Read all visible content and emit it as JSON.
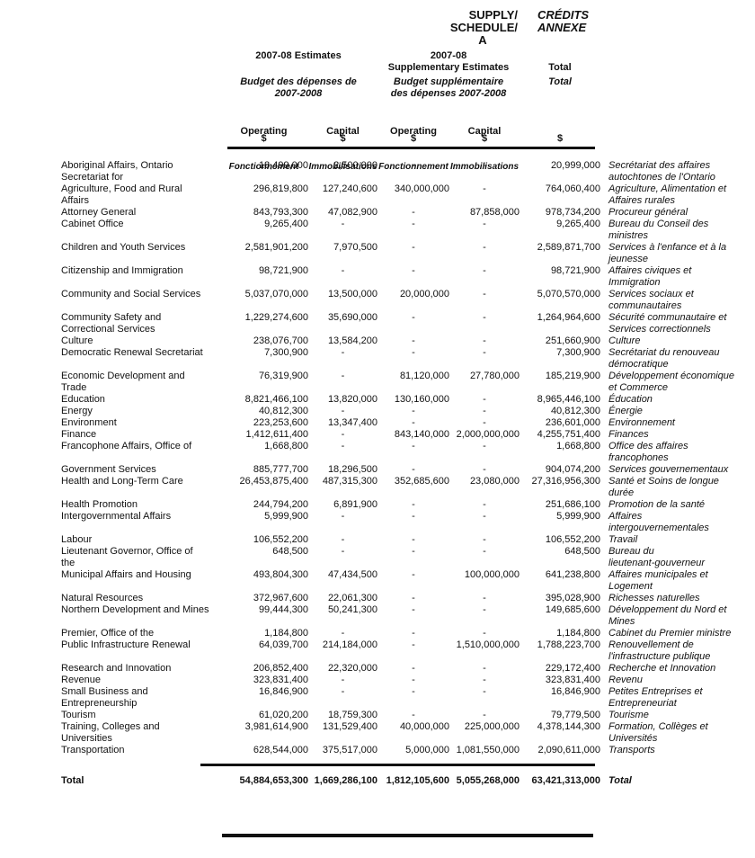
{
  "title": {
    "en_lines": [
      "SUPPLY/",
      "SCHEDULE/",
      "A"
    ],
    "fr_lines": [
      "CRÉDITS",
      "ANNEXE"
    ]
  },
  "columns": {
    "group1": {
      "en": "2007-08 Estimates",
      "fr": "Budget des dépenses de\n2007-2008"
    },
    "group2": {
      "en": "2007-08\nSupplementary Estimates",
      "fr": "Budget supplémentaire\ndes dépenses 2007-2008"
    },
    "total": {
      "en": "Total",
      "fr": "Total"
    },
    "operating": {
      "en": "Operating",
      "fr": "Fonctionnement"
    },
    "capital": {
      "en": "Capital",
      "fr": "Immobilisations"
    },
    "currency_symbol": "$"
  },
  "rows": [
    {
      "en": "Aboriginal Affairs, Ontario\nSecretariat for",
      "op": "18,499,000",
      "cap": "2,500,000",
      "sup_op": "-",
      "sup_cap": "-",
      "total": "20,999,000",
      "fr": "Secrétariat des affaires\nautochtones de l'Ontario"
    },
    {
      "en": "Agriculture, Food and Rural\nAffairs",
      "op": "296,819,800",
      "cap": "127,240,600",
      "sup_op": "340,000,000",
      "sup_cap": "-",
      "total": "764,060,400",
      "fr": "Agriculture, Alimentation et\nAffaires rurales"
    },
    {
      "en": "Attorney General",
      "op": "843,793,300",
      "cap": "47,082,900",
      "sup_op": "-",
      "sup_cap": "87,858,000",
      "total": "978,734,200",
      "fr": "Procureur général"
    },
    {
      "en": "Cabinet Office",
      "op": "9,265,400",
      "cap": "-",
      "sup_op": "-",
      "sup_cap": "-",
      "total": "9,265,400",
      "fr": "Bureau du Conseil des\nministres"
    },
    {
      "en": "Children and Youth Services",
      "op": "2,581,901,200",
      "cap": "7,970,500",
      "sup_op": "-",
      "sup_cap": "-",
      "total": "2,589,871,700",
      "fr": "Services à l'enfance et à la\njeunesse"
    },
    {
      "en": "Citizenship and Immigration",
      "op": "98,721,900",
      "cap": "-",
      "sup_op": "-",
      "sup_cap": "-",
      "total": "98,721,900",
      "fr": "Affaires civiques et\nImmigration"
    },
    {
      "en": "Community and Social Services",
      "op": "5,037,070,000",
      "cap": "13,500,000",
      "sup_op": "20,000,000",
      "sup_cap": "-",
      "total": "5,070,570,000",
      "fr": "Services sociaux et\ncommunautaires"
    },
    {
      "en": "Community Safety and\nCorrectional Services",
      "op": "1,229,274,600",
      "cap": "35,690,000",
      "sup_op": "-",
      "sup_cap": "-",
      "total": "1,264,964,600",
      "fr": "Sécurité communautaire et\nServices correctionnels"
    },
    {
      "en": "Culture",
      "op": "238,076,700",
      "cap": "13,584,200",
      "sup_op": "-",
      "sup_cap": "-",
      "total": "251,660,900",
      "fr": "Culture"
    },
    {
      "en": "Democratic Renewal Secretariat",
      "op": "7,300,900",
      "cap": "-",
      "sup_op": "-",
      "sup_cap": "-",
      "total": "7,300,900",
      "fr": "Secrétariat du renouveau\ndémocratique"
    },
    {
      "en": "Economic Development and\nTrade",
      "op": "76,319,900",
      "cap": "-",
      "sup_op": "81,120,000",
      "sup_cap": "27,780,000",
      "total": "185,219,900",
      "fr": "Développement économique\net Commerce"
    },
    {
      "en": "Education",
      "op": "8,821,466,100",
      "cap": "13,820,000",
      "sup_op": "130,160,000",
      "sup_cap": "-",
      "total": "8,965,446,100",
      "fr": "Éducation"
    },
    {
      "en": "Energy",
      "op": "40,812,300",
      "cap": "-",
      "sup_op": "-",
      "sup_cap": "-",
      "total": "40,812,300",
      "fr": "Énergie"
    },
    {
      "en": "Environment",
      "op": "223,253,600",
      "cap": "13,347,400",
      "sup_op": "-",
      "sup_cap": "-",
      "total": "236,601,000",
      "fr": "Environnement"
    },
    {
      "en": "Finance",
      "op": "1,412,611,400",
      "cap": "-",
      "sup_op": "843,140,000",
      "sup_cap": "2,000,000,000",
      "total": "4,255,751,400",
      "fr": "Finances"
    },
    {
      "en": "Francophone Affairs, Office of",
      "op": "1,668,800",
      "cap": "-",
      "sup_op": "-",
      "sup_cap": "-",
      "total": "1,668,800",
      "fr": "Office des affaires\nfrancophones"
    },
    {
      "en": "Government Services",
      "op": "885,777,700",
      "cap": "18,296,500",
      "sup_op": "-",
      "sup_cap": "-",
      "total": "904,074,200",
      "fr": "Services gouvernementaux"
    },
    {
      "en": "Health and Long-Term Care",
      "op": "26,453,875,400",
      "cap": "487,315,300",
      "sup_op": "352,685,600",
      "sup_cap": "23,080,000",
      "total": "27,316,956,300",
      "fr": "Santé et Soins de longue\ndurée"
    },
    {
      "en": "Health Promotion",
      "op": "244,794,200",
      "cap": "6,891,900",
      "sup_op": "-",
      "sup_cap": "-",
      "total": "251,686,100",
      "fr": "Promotion de la santé"
    },
    {
      "en": "Intergovernmental Affairs",
      "op": "5,999,900",
      "cap": "-",
      "sup_op": "-",
      "sup_cap": "-",
      "total": "5,999,900",
      "fr": "Affaires\nintergouvernementales"
    },
    {
      "en": "Labour",
      "op": "106,552,200",
      "cap": "-",
      "sup_op": "-",
      "sup_cap": "-",
      "total": "106,552,200",
      "fr": "Travail"
    },
    {
      "en": "Lieutenant Governor, Office of\nthe",
      "op": "648,500",
      "cap": "-",
      "sup_op": "-",
      "sup_cap": "-",
      "total": "648,500",
      "fr": "Bureau du\nlieutenant-gouverneur"
    },
    {
      "en": "Municipal Affairs and Housing",
      "op": "493,804,300",
      "cap": "47,434,500",
      "sup_op": "-",
      "sup_cap": "100,000,000",
      "total": "641,238,800",
      "fr": "Affaires municipales et\nLogement"
    },
    {
      "en": "Natural Resources",
      "op": "372,967,600",
      "cap": "22,061,300",
      "sup_op": "-",
      "sup_cap": "-",
      "total": "395,028,900",
      "fr": "Richesses naturelles"
    },
    {
      "en": "Northern Development and Mines",
      "op": "99,444,300",
      "cap": "50,241,300",
      "sup_op": "-",
      "sup_cap": "-",
      "total": "149,685,600",
      "fr": "Développement du Nord et\nMines"
    },
    {
      "en": "Premier, Office of the",
      "op": "1,184,800",
      "cap": "-",
      "sup_op": "-",
      "sup_cap": "-",
      "total": "1,184,800",
      "fr": "Cabinet du Premier ministre"
    },
    {
      "en": "Public Infrastructure Renewal",
      "op": "64,039,700",
      "cap": "214,184,000",
      "sup_op": "-",
      "sup_cap": "1,510,000,000",
      "total": "1,788,223,700",
      "fr": "Renouvellement de\nl'infrastructure publique"
    },
    {
      "en": "Research and Innovation",
      "op": "206,852,400",
      "cap": "22,320,000",
      "sup_op": "-",
      "sup_cap": "-",
      "total": "229,172,400",
      "fr": "Recherche et Innovation"
    },
    {
      "en": "Revenue",
      "op": "323,831,400",
      "cap": "-",
      "sup_op": "-",
      "sup_cap": "-",
      "total": "323,831,400",
      "fr": "Revenu"
    },
    {
      "en": "Small Business and\nEntrepreneurship",
      "op": "16,846,900",
      "cap": "-",
      "sup_op": "-",
      "sup_cap": "-",
      "total": "16,846,900",
      "fr": "Petites Entreprises et\nEntrepreneuriat"
    },
    {
      "en": "Tourism",
      "op": "61,020,200",
      "cap": "18,759,300",
      "sup_op": "-",
      "sup_cap": "-",
      "total": "79,779,500",
      "fr": "Tourisme"
    },
    {
      "en": "Training, Colleges and\nUniversities",
      "op": "3,981,614,900",
      "cap": "131,529,400",
      "sup_op": "40,000,000",
      "sup_cap": "225,000,000",
      "total": "4,378,144,300",
      "fr": "Formation, Collèges et\nUniversités"
    },
    {
      "en": "Transportation",
      "op": "628,544,000",
      "cap": "375,517,000",
      "sup_op": "5,000,000",
      "sup_cap": "1,081,550,000",
      "total": "2,090,611,000",
      "fr": "Transports"
    }
  ],
  "total_row": {
    "en": "Total",
    "op": "54,884,653,300",
    "cap": "1,669,286,100",
    "sup_op": "1,812,105,600",
    "sup_cap": "5,055,268,000",
    "total": "63,421,313,000",
    "fr": "Total"
  }
}
